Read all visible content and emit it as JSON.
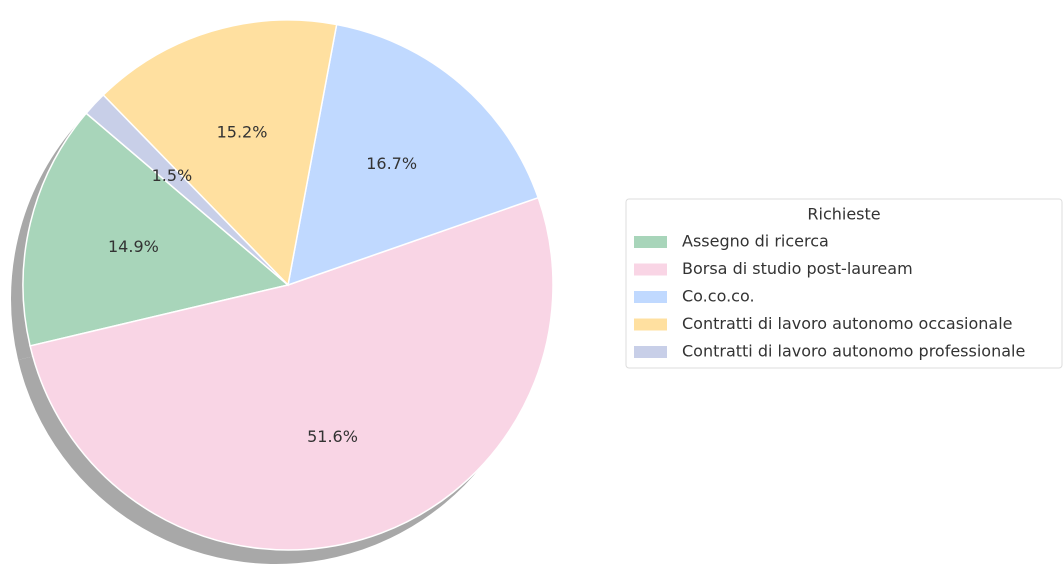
{
  "chart_data": {
    "type": "pie",
    "legend_title": "Richieste",
    "legend_position": "right",
    "shadow": true,
    "categories": [
      "Assegno di ricerca",
      "Borsa di studio post-lauream",
      "Co.co.co.",
      "Contratti di lavoro autonomo occasionale",
      "Contratti di lavoro autonomo professionale"
    ],
    "values": [
      14.9,
      51.6,
      16.7,
      15.2,
      1.5
    ],
    "value_labels": [
      "14.9%",
      "51.6%",
      "16.7%",
      "15.2%",
      "1.5%"
    ],
    "colors": [
      "#a8d5ba",
      "#f9d5e5",
      "#c0d9ff",
      "#ffe0a0",
      "#c8cfe8"
    ]
  }
}
